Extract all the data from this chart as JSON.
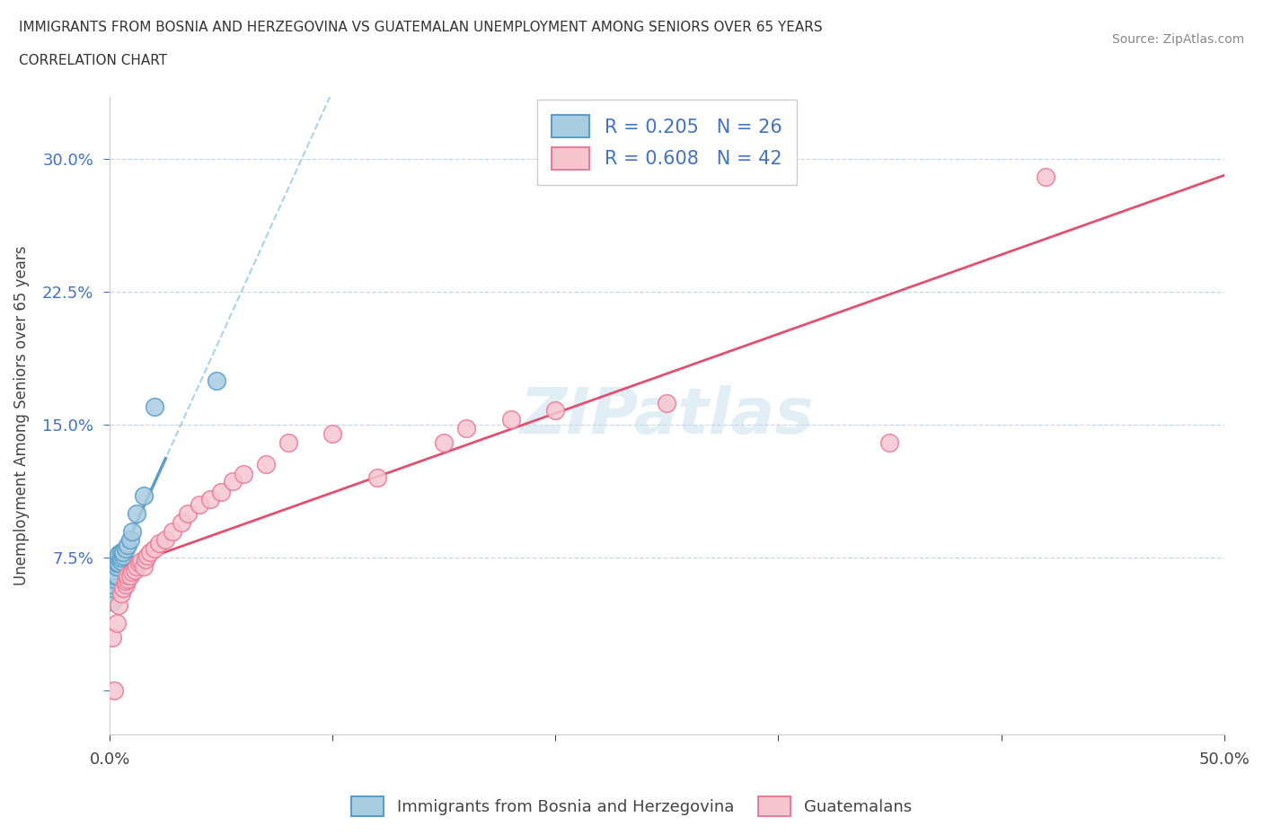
{
  "title_line1": "IMMIGRANTS FROM BOSNIA AND HERZEGOVINA VS GUATEMALAN UNEMPLOYMENT AMONG SENIORS OVER 65 YEARS",
  "title_line2": "CORRELATION CHART",
  "source": "Source: ZipAtlas.com",
  "ylabel": "Unemployment Among Seniors over 65 years",
  "xlim": [
    0.0,
    0.5
  ],
  "ylim": [
    -0.025,
    0.335
  ],
  "xtick_positions": [
    0.0,
    0.1,
    0.2,
    0.3,
    0.4,
    0.5
  ],
  "xtick_labels": [
    "0.0%",
    "",
    "",
    "",
    "",
    "50.0%"
  ],
  "ytick_positions": [
    0.0,
    0.075,
    0.15,
    0.225,
    0.3
  ],
  "ytick_labels": [
    "",
    "7.5%",
    "15.0%",
    "22.5%",
    "30.0%"
  ],
  "bosnia_R": 0.205,
  "bosnia_N": 26,
  "guatemalan_R": 0.608,
  "guatemalan_N": 42,
  "bosnia_color": "#a8cce0",
  "bosnia_edge_color": "#5b9ec9",
  "guatemalan_color": "#f5c6d0",
  "guatemalan_edge_color": "#e87d9a",
  "bosnia_trend_color": "#5b9ec9",
  "bosnia_dashed_color": "#a8d4e8",
  "guatemalan_trend_color": "#e05070",
  "watermark_text": "ZIPatlas",
  "legend_label_bosnia": "Immigrants from Bosnia and Herzegovina",
  "legend_label_guatemalan": "Guatemalans",
  "background_color": "#ffffff",
  "grid_color": "#c8d8e8",
  "bosnia_x": [
    0.001,
    0.001,
    0.001,
    0.002,
    0.002,
    0.002,
    0.003,
    0.003,
    0.003,
    0.003,
    0.004,
    0.004,
    0.004,
    0.005,
    0.005,
    0.005,
    0.006,
    0.006,
    0.007,
    0.008,
    0.009,
    0.01,
    0.012,
    0.015,
    0.02,
    0.048
  ],
  "bosnia_y": [
    0.05,
    0.058,
    0.06,
    0.063,
    0.065,
    0.068,
    0.065,
    0.07,
    0.072,
    0.073,
    0.072,
    0.075,
    0.077,
    0.073,
    0.075,
    0.078,
    0.076,
    0.078,
    0.08,
    0.082,
    0.085,
    0.09,
    0.1,
    0.11,
    0.16,
    0.175
  ],
  "guatemalan_x": [
    0.001,
    0.002,
    0.003,
    0.004,
    0.005,
    0.006,
    0.007,
    0.007,
    0.008,
    0.008,
    0.009,
    0.01,
    0.011,
    0.012,
    0.013,
    0.014,
    0.015,
    0.016,
    0.017,
    0.018,
    0.02,
    0.022,
    0.025,
    0.028,
    0.032,
    0.035,
    0.04,
    0.045,
    0.05,
    0.055,
    0.06,
    0.07,
    0.08,
    0.1,
    0.12,
    0.15,
    0.16,
    0.18,
    0.2,
    0.25,
    0.35,
    0.42
  ],
  "guatemalan_y": [
    0.03,
    0.0,
    0.038,
    0.048,
    0.055,
    0.058,
    0.06,
    0.062,
    0.063,
    0.065,
    0.065,
    0.067,
    0.068,
    0.07,
    0.072,
    0.073,
    0.07,
    0.074,
    0.076,
    0.078,
    0.08,
    0.083,
    0.085,
    0.09,
    0.095,
    0.1,
    0.105,
    0.108,
    0.112,
    0.118,
    0.122,
    0.128,
    0.14,
    0.145,
    0.12,
    0.14,
    0.148,
    0.153,
    0.158,
    0.162,
    0.14,
    0.29
  ]
}
